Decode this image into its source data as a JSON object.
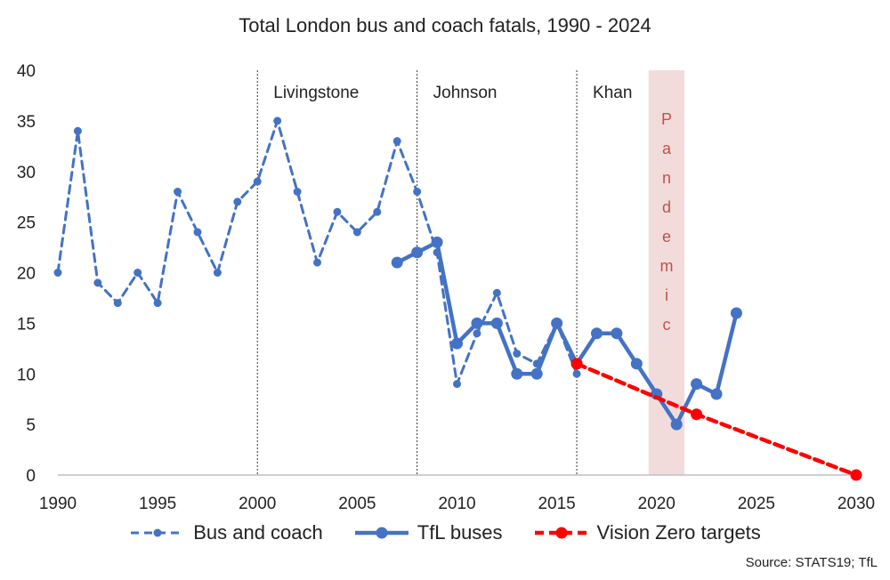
{
  "chart_data": {
    "type": "line",
    "title": "Total London bus and coach fatals, 1990 - 2024",
    "source": "Source: STATS19; TfL",
    "xlim": [
      1990,
      2030
    ],
    "ylim": [
      0,
      40
    ],
    "x_ticks": [
      1990,
      1995,
      2000,
      2005,
      2010,
      2015,
      2020,
      2025,
      2030
    ],
    "y_ticks": [
      0,
      5,
      10,
      15,
      20,
      25,
      30,
      35,
      40
    ],
    "grid": false,
    "legend_position": "bottom",
    "series": [
      {
        "name": "Bus and coach",
        "style": "dashed-dot",
        "color": "#4472C4",
        "x": [
          1990,
          1991,
          1992,
          1993,
          1994,
          1995,
          1996,
          1997,
          1998,
          1999,
          2000,
          2001,
          2002,
          2003,
          2004,
          2005,
          2006,
          2007,
          2008,
          2009,
          2010,
          2011,
          2012,
          2013,
          2014,
          2015,
          2016
        ],
        "y": [
          20,
          34,
          19,
          17,
          20,
          17,
          28,
          24,
          20,
          27,
          29,
          35,
          28,
          21,
          26,
          24,
          26,
          33,
          28,
          22,
          9,
          14,
          18,
          12,
          11,
          15,
          10
        ]
      },
      {
        "name": "TfL buses",
        "style": "solid",
        "color": "#4472C4",
        "x": [
          2007,
          2008,
          2009,
          2010,
          2011,
          2012,
          2013,
          2014,
          2015,
          2016,
          2017,
          2018,
          2019,
          2020,
          2021,
          2022,
          2023,
          2024
        ],
        "y": [
          21,
          22,
          23,
          13,
          15,
          15,
          10,
          10,
          15,
          11,
          14,
          14,
          11,
          8,
          5,
          9,
          8,
          16
        ]
      },
      {
        "name": "Vision Zero targets",
        "style": "dashed-red",
        "color": "#FF0000",
        "x": [
          2016,
          2022,
          2030
        ],
        "y": [
          11,
          6,
          0
        ]
      }
    ],
    "annotations": [
      {
        "text": "Livingstone",
        "x": 2000
      },
      {
        "text": "Johnson",
        "x": 2008
      },
      {
        "text": "Khan",
        "x": 2016
      }
    ],
    "pandemic_band": {
      "text": "Pandemic",
      "x_range": [
        2019.6,
        2021.4
      ],
      "color": "#F2DCDB",
      "text_color": "#C0504D"
    }
  }
}
